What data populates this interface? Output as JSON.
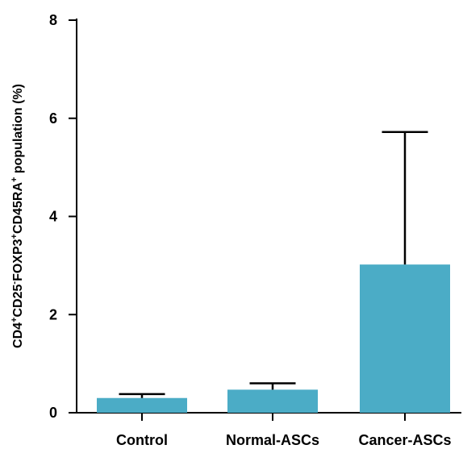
{
  "chart_data": {
    "type": "bar",
    "title": "",
    "xlabel": "",
    "ylabel": {
      "text": "CD4+CD25-FOXP3+CD45RA+ population (%)",
      "parts": [
        {
          "t": "CD4",
          "sup": false
        },
        {
          "t": "+",
          "sup": true
        },
        {
          "t": "CD25",
          "sup": false
        },
        {
          "t": "-",
          "sup": true
        },
        {
          "t": "FOXP3",
          "sup": false
        },
        {
          "t": "+",
          "sup": true
        },
        {
          "t": "CD45RA",
          "sup": false
        },
        {
          "t": "+",
          "sup": true
        },
        {
          "t": " population (%)",
          "sup": false
        }
      ]
    },
    "categories": [
      "Control",
      "Normal-ASCs",
      "Cancer-ASCs"
    ],
    "values": [
      0.3,
      0.47,
      3.02
    ],
    "error_upper": [
      0.38,
      0.6,
      5.72
    ],
    "ylim": [
      0,
      8
    ],
    "yticks": [
      0,
      2,
      4,
      6,
      8
    ],
    "grid": false,
    "colors": {
      "bar": "#4BACC6",
      "axis": "#000000",
      "error_bar": "#000000"
    }
  }
}
